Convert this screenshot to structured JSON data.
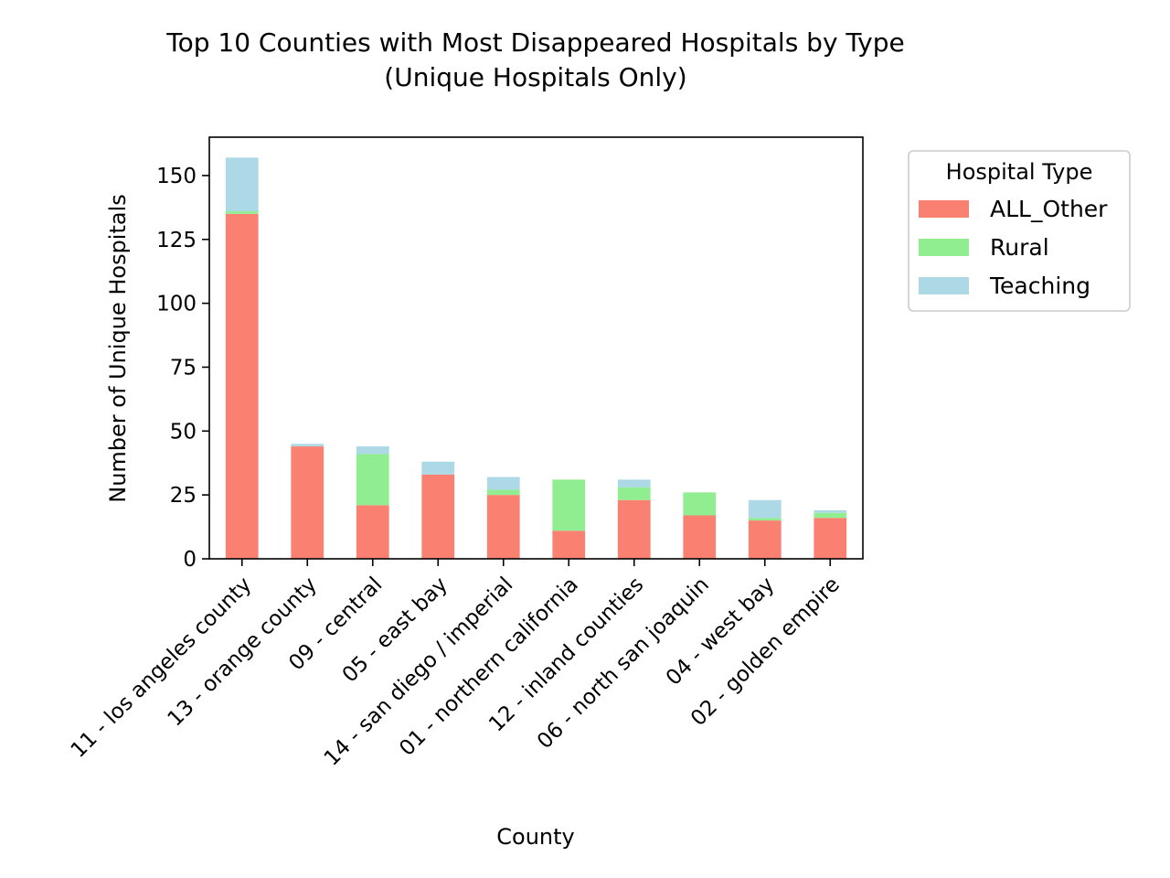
{
  "colors": {
    "all_other": "#fa8072",
    "rural": "#90ee90",
    "teaching": "#add8e6"
  },
  "chart_data": {
    "type": "bar",
    "stacked": true,
    "title": "Top 10 Counties with Most Disappeared Hospitals by Type",
    "subtitle": "(Unique Hospitals Only)",
    "xlabel": "County",
    "ylabel": "Number of Unique Hospitals",
    "ylim": [
      0,
      165
    ],
    "yticks": [
      0,
      25,
      50,
      75,
      100,
      125,
      150
    ],
    "grid": false,
    "legend": {
      "title": "Hospital Type",
      "placement": "outside-right"
    },
    "categories": [
      "11 - los angeles county",
      "13 - orange county",
      "09 - central",
      "05 - east bay",
      "14 - san diego / imperial",
      "01 - northern california",
      "12 - inland counties",
      "06 - north san joaquin",
      "04 - west bay",
      "02 - golden empire"
    ],
    "series": [
      {
        "name": "ALL_Other",
        "color": "#fa8072",
        "values": [
          135,
          44,
          21,
          33,
          25,
          11,
          23,
          17,
          15,
          16
        ]
      },
      {
        "name": "Rural",
        "color": "#90ee90",
        "values": [
          1,
          0,
          20,
          0,
          2,
          20,
          5,
          9,
          1,
          2
        ]
      },
      {
        "name": "Teaching",
        "color": "#add8e6",
        "values": [
          21,
          1,
          3,
          5,
          5,
          0,
          3,
          0,
          7,
          1
        ]
      }
    ]
  }
}
